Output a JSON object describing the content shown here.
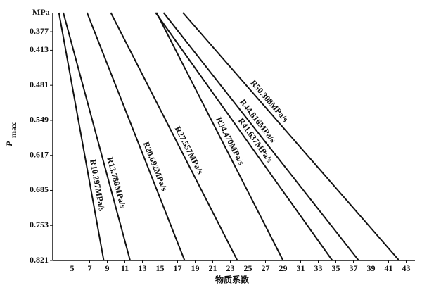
{
  "chart_data": {
    "type": "line",
    "y_unit": "MPa",
    "y_label": "P",
    "y_label_sub": "max",
    "x_label": "物质系数",
    "xlim": [
      2.8,
      44
    ],
    "xticks": [
      5,
      7,
      9,
      11,
      13,
      15,
      17,
      19,
      21,
      23,
      25,
      27,
      29,
      31,
      33,
      35,
      37,
      39,
      41,
      43
    ],
    "ylim": [
      0.821,
      0.34
    ],
    "yticks": [
      0.377,
      0.413,
      0.481,
      0.549,
      0.617,
      0.685,
      0.753,
      0.821
    ],
    "color": "#111111",
    "series": [
      {
        "name": "R10.297MPa/s",
        "x": [
          3.5,
          8.6
        ],
        "values": [
          0.34,
          0.821
        ]
      },
      {
        "name": "R13.788MPa/s",
        "x": [
          4.0,
          11.6
        ],
        "values": [
          0.34,
          0.821
        ]
      },
      {
        "name": "R20.692MPa/s",
        "x": [
          6.7,
          17.8
        ],
        "values": [
          0.34,
          0.821
        ]
      },
      {
        "name": "R27.557MPa/s",
        "x": [
          9.4,
          23.8
        ],
        "values": [
          0.34,
          0.821
        ]
      },
      {
        "name": "R34.470MPa/s",
        "x": [
          14.6,
          29.0
        ],
        "values": [
          0.34,
          0.821
        ]
      },
      {
        "name": "R41.637MPa/s",
        "x": [
          14.5,
          34.6
        ],
        "values": [
          0.34,
          0.821
        ]
      },
      {
        "name": "R44.816MPa/s",
        "x": [
          15.4,
          37.6
        ],
        "values": [
          0.34,
          0.821
        ]
      },
      {
        "name": "R50.308MPa/s",
        "x": [
          17.6,
          42.2
        ],
        "values": [
          0.34,
          0.821
        ]
      }
    ]
  }
}
